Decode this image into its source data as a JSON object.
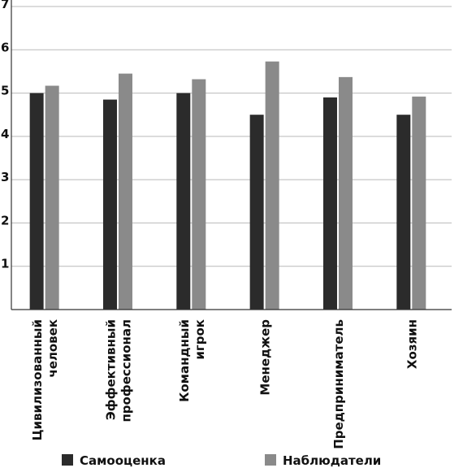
{
  "chart_data": {
    "type": "bar",
    "categories": [
      [
        "Цивилизованный",
        "человек"
      ],
      [
        "Эффективный",
        "профессионал"
      ],
      [
        "Командный",
        "игрок"
      ],
      [
        "Менеджер"
      ],
      [
        "Предприниматель"
      ],
      [
        "Хозяин"
      ]
    ],
    "series": [
      {
        "name": "Самооценка",
        "color": "#2b2b2b",
        "values": [
          5.0,
          4.85,
          5.0,
          4.5,
          4.9,
          4.5
        ]
      },
      {
        "name": "Наблюдатели",
        "color": "#8a8a8a",
        "values": [
          5.17,
          5.45,
          5.32,
          5.73,
          5.37,
          4.92
        ]
      }
    ],
    "ylim": [
      0,
      7
    ],
    "yticks": [
      "1",
      "2",
      "3",
      "4",
      "5",
      "6",
      "7"
    ],
    "grid": true,
    "legend": "bottom"
  }
}
